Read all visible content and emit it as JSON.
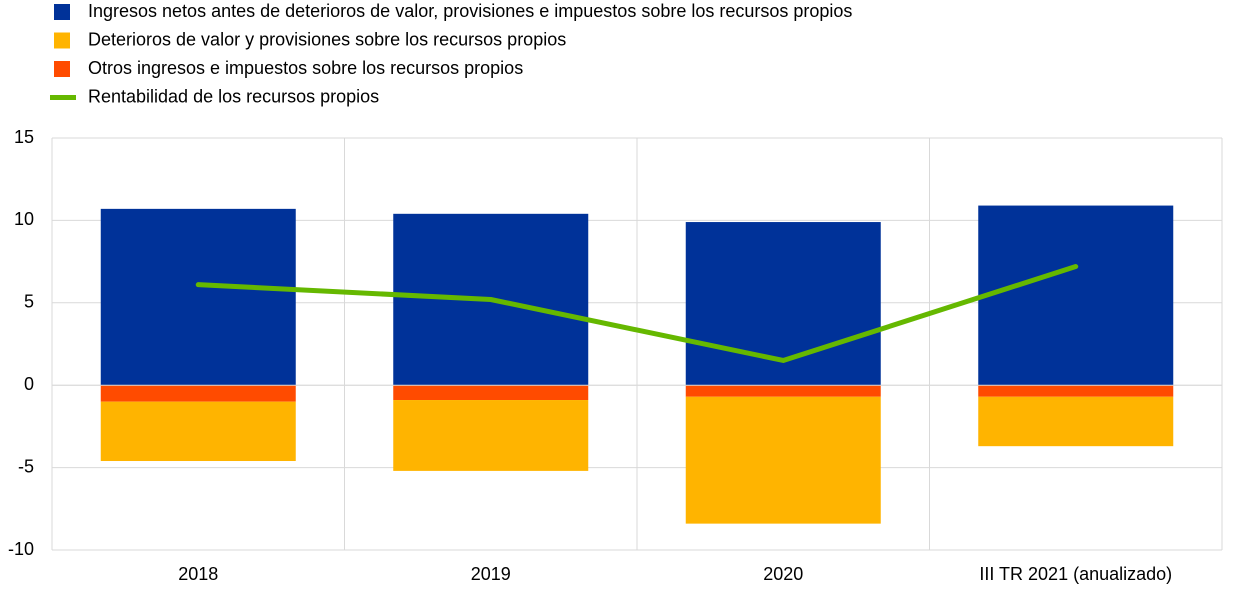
{
  "chart_data": {
    "type": "bar",
    "categories": [
      "2018",
      "2019",
      "2020",
      "III TR 2021 (anualizado)"
    ],
    "series": [
      {
        "name": "Ingresos netos antes de deterioros de valor, provisiones e impuestos sobre los recursos propios",
        "color": "#003299",
        "values": [
          10.7,
          10.4,
          9.9,
          10.9
        ]
      },
      {
        "name": "Deterioros de valor y provisiones sobre los recursos propios",
        "color": "#ffb400",
        "values": [
          -3.6,
          -4.3,
          -7.7,
          -3.0
        ]
      },
      {
        "name": "Otros ingresos e impuestos sobre los recursos propios",
        "color": "#ff4b00",
        "values": [
          -1.0,
          -0.9,
          -0.7,
          -0.7
        ]
      },
      {
        "name": "Rentabilidad de los recursos propios",
        "color": "#65b800",
        "type": "line",
        "values": [
          6.1,
          5.2,
          1.5,
          7.2
        ]
      }
    ],
    "ylim": [
      -10,
      15
    ],
    "yticks": [
      -10,
      -5,
      0,
      5,
      10,
      15
    ],
    "grid": true
  }
}
